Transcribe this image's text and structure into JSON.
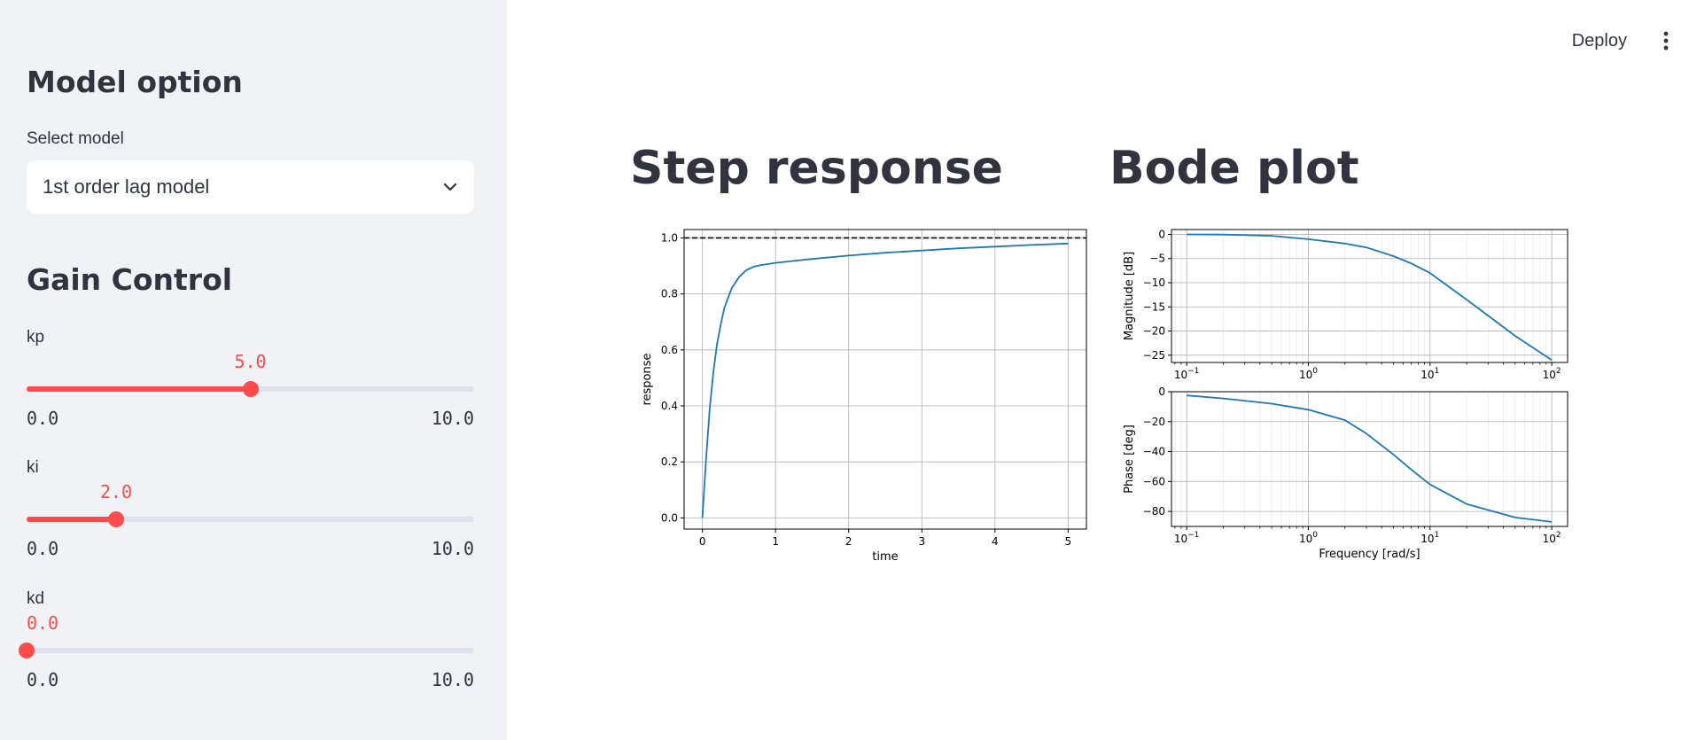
{
  "header": {
    "deploy_label": "Deploy",
    "menu_icon": "kebab-menu-icon"
  },
  "sidebar": {
    "model_heading": "Model option",
    "select_label": "Select model",
    "select_value": "1st order lag model",
    "gain_heading": "Gain Control",
    "sliders": [
      {
        "label": "kp",
        "value": "5.0",
        "min": "0.0",
        "max": "10.0",
        "fraction": 0.5
      },
      {
        "label": "ki",
        "value": "2.0",
        "min": "0.0",
        "max": "10.0",
        "fraction": 0.2
      },
      {
        "label": "kd",
        "value": "0.0",
        "min": "0.0",
        "max": "10.0",
        "fraction": 0.0
      }
    ],
    "accent_color": "#ff4b4b"
  },
  "main": {
    "step_title": "Step response",
    "bode_title": "Bode plot"
  },
  "chart_data": [
    {
      "type": "line",
      "xlabel": "time",
      "ylabel": "response",
      "xlim": [
        -0.25,
        5.25
      ],
      "ylim": [
        -0.04,
        1.03
      ],
      "xticks": [
        "0",
        "1",
        "2",
        "3",
        "4",
        "5"
      ],
      "yticks": [
        "0.0",
        "0.2",
        "0.4",
        "0.6",
        "0.8",
        "1.0"
      ],
      "grid": true,
      "reference_line": {
        "y": 1.0,
        "style": "dashed",
        "color": "#000000"
      },
      "series": [
        {
          "color": "#1f77b4",
          "x": [
            0,
            0.05,
            0.1,
            0.15,
            0.2,
            0.25,
            0.3,
            0.4,
            0.5,
            0.6,
            0.7,
            0.8,
            1.0,
            1.5,
            2.0,
            2.5,
            3.0,
            3.5,
            4.0,
            4.5,
            5.0
          ],
          "y": [
            0.0,
            0.21,
            0.39,
            0.52,
            0.62,
            0.69,
            0.75,
            0.82,
            0.86,
            0.885,
            0.897,
            0.903,
            0.911,
            0.925,
            0.937,
            0.947,
            0.955,
            0.963,
            0.969,
            0.975,
            0.98
          ]
        }
      ]
    },
    {
      "type": "line",
      "ylabel": "Magnitude [dB]",
      "xscale": "log",
      "xlim": [
        0.075,
        135
      ],
      "ylim": [
        -26.5,
        1
      ],
      "xticks": [
        "10^-1",
        "10^0",
        "10^1",
        "10^2"
      ],
      "yticks": [
        "0",
        "-5",
        "-10",
        "-15",
        "-20",
        "-25"
      ],
      "grid": true,
      "series": [
        {
          "color": "#1f77b4",
          "x": [
            0.1,
            0.2,
            0.5,
            1,
            2,
            3,
            5,
            7,
            10,
            20,
            50,
            100
          ],
          "y": [
            -0.01,
            -0.05,
            -0.3,
            -1.0,
            -1.9,
            -2.7,
            -4.5,
            -6.0,
            -8.0,
            -13.5,
            -21.0,
            -26.0
          ]
        }
      ]
    },
    {
      "type": "line",
      "xlabel": "Frequency [rad/s]",
      "ylabel": "Phase [deg]",
      "xscale": "log",
      "xlim": [
        0.075,
        135
      ],
      "ylim": [
        -90,
        0
      ],
      "xticks": [
        "10^-1",
        "10^0",
        "10^1",
        "10^2"
      ],
      "yticks": [
        "0",
        "-20",
        "-40",
        "-60",
        "-80"
      ],
      "grid": true,
      "series": [
        {
          "color": "#1f77b4",
          "x": [
            0.1,
            0.2,
            0.5,
            1,
            2,
            3,
            5,
            7,
            10,
            20,
            50,
            100
          ],
          "y": [
            -2.5,
            -4.5,
            -8.0,
            -12.0,
            -19.0,
            -28.0,
            -42.0,
            -52.0,
            -62.0,
            -75.0,
            -84.0,
            -87.0
          ]
        }
      ]
    }
  ]
}
